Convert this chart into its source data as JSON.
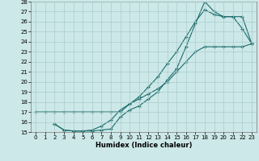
{
  "xlabel": "Humidex (Indice chaleur)",
  "background_color": "#cde8e8",
  "grid_color": "#aacccc",
  "line_color": "#1a6b6b",
  "xlim": [
    -0.5,
    23.5
  ],
  "ylim": [
    15,
    28
  ],
  "x_ticks": [
    0,
    1,
    2,
    3,
    4,
    5,
    6,
    7,
    8,
    9,
    10,
    11,
    12,
    13,
    14,
    15,
    16,
    17,
    18,
    19,
    20,
    21,
    22,
    23
  ],
  "y_ticks": [
    15,
    16,
    17,
    18,
    19,
    20,
    21,
    22,
    23,
    24,
    25,
    26,
    27,
    28
  ],
  "curve1_x": [
    0,
    1,
    2,
    3,
    4,
    5,
    6,
    7,
    8,
    9,
    10,
    11,
    12,
    13,
    14,
    15,
    16,
    17,
    18,
    19,
    20,
    21,
    22,
    23
  ],
  "curve1_y": [
    17,
    17,
    17,
    17,
    17,
    17,
    17,
    17,
    17,
    17,
    17.8,
    18.3,
    18.8,
    19.3,
    20.0,
    21.0,
    22.0,
    23.0,
    23.5,
    23.5,
    23.5,
    23.5,
    23.5,
    23.8
  ],
  "curve2_x": [
    2,
    3,
    4,
    5,
    6,
    7,
    8,
    9,
    10,
    11,
    12,
    13,
    14,
    15,
    16,
    17,
    18,
    19,
    20,
    21,
    22,
    23
  ],
  "curve2_y": [
    15.8,
    15.2,
    15.1,
    15.1,
    15.1,
    15.2,
    15.3,
    16.5,
    17.2,
    17.6,
    18.3,
    19.0,
    20.2,
    21.3,
    23.5,
    25.8,
    28.0,
    27.0,
    26.5,
    26.5,
    25.3,
    23.8
  ],
  "curve3_x": [
    2,
    3,
    4,
    5,
    6,
    7,
    8,
    9,
    10,
    11,
    12,
    13,
    14,
    15,
    16,
    17,
    18,
    19,
    20,
    21,
    22,
    23
  ],
  "curve3_y": [
    15.8,
    15.2,
    15.1,
    15.1,
    15.2,
    15.6,
    16.2,
    17.2,
    17.8,
    18.5,
    19.5,
    20.5,
    21.8,
    23.0,
    24.5,
    26.0,
    27.2,
    26.7,
    26.5,
    26.5,
    26.5,
    23.8
  ]
}
